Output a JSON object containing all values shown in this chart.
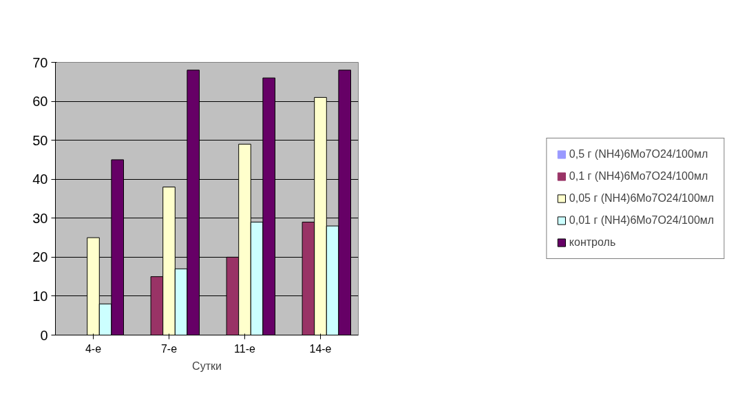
{
  "chart_data": {
    "type": "bar",
    "xlabel": "Сутки",
    "categories": [
      "4-е",
      "7-е",
      "11-е",
      "14-е"
    ],
    "series": [
      {
        "name": "0,5 г (NH4)6Mo7O24/100мл",
        "color": "#9999ff",
        "values": [
          0,
          0,
          0,
          0
        ]
      },
      {
        "name": "0,1 г (NH4)6Mo7O24/100мл",
        "color": "#993366",
        "values": [
          0,
          15,
          20,
          29
        ]
      },
      {
        "name": "0,05 г (NH4)6Mo7O24/100мл",
        "color": "#ffffcc",
        "values": [
          25,
          38,
          49,
          61
        ]
      },
      {
        "name": "0,01 г (NH4)6Mo7O24/100мл",
        "color": "#ccffff",
        "values": [
          8,
          17,
          29,
          28
        ]
      },
      {
        "name": "контроль",
        "color": "#660066",
        "values": [
          45,
          68,
          66,
          68
        ]
      }
    ],
    "ylim": [
      0,
      70
    ],
    "yticks": [
      0,
      10,
      20,
      30,
      40,
      50,
      60,
      70
    ],
    "grid": "y",
    "legend": "right"
  }
}
